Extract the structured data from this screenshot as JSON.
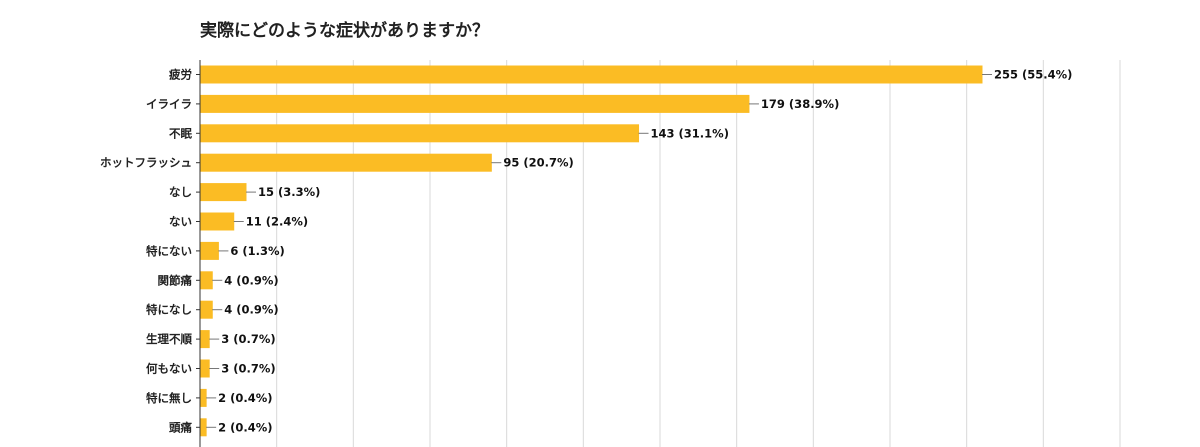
{
  "chart_data": {
    "type": "bar",
    "orientation": "horizontal",
    "title": "実際にどのような症状がありますか？",
    "categories": [
      "疲労",
      "イライラ",
      "不眠",
      "ホットフラッシュ",
      "なし",
      "ない",
      "特にない",
      "関節痛",
      "特になし",
      "生理不順",
      "何もない",
      "特に無し",
      "頭痛"
    ],
    "values": [
      255,
      179,
      143,
      95,
      15,
      11,
      6,
      4,
      4,
      3,
      3,
      2,
      2
    ],
    "data_labels": [
      "255 (55.4%)",
      "179 (38.9%)",
      "143 (31.1%)",
      "95 (20.7%)",
      "15 (3.3%)",
      "11 (2.4%)",
      "6 (1.3%)",
      "4 (0.9%)",
      "4 (0.9%)",
      "3 (0.7%)",
      "3 (0.7%)",
      "2 (0.4%)",
      "2 (0.4%)"
    ],
    "xlim": [
      0,
      300
    ],
    "gridlines": true,
    "legend": "none",
    "bar_color": "#FBBC24",
    "grid_color": "#D9D9D9",
    "axis_color": "#333333"
  }
}
